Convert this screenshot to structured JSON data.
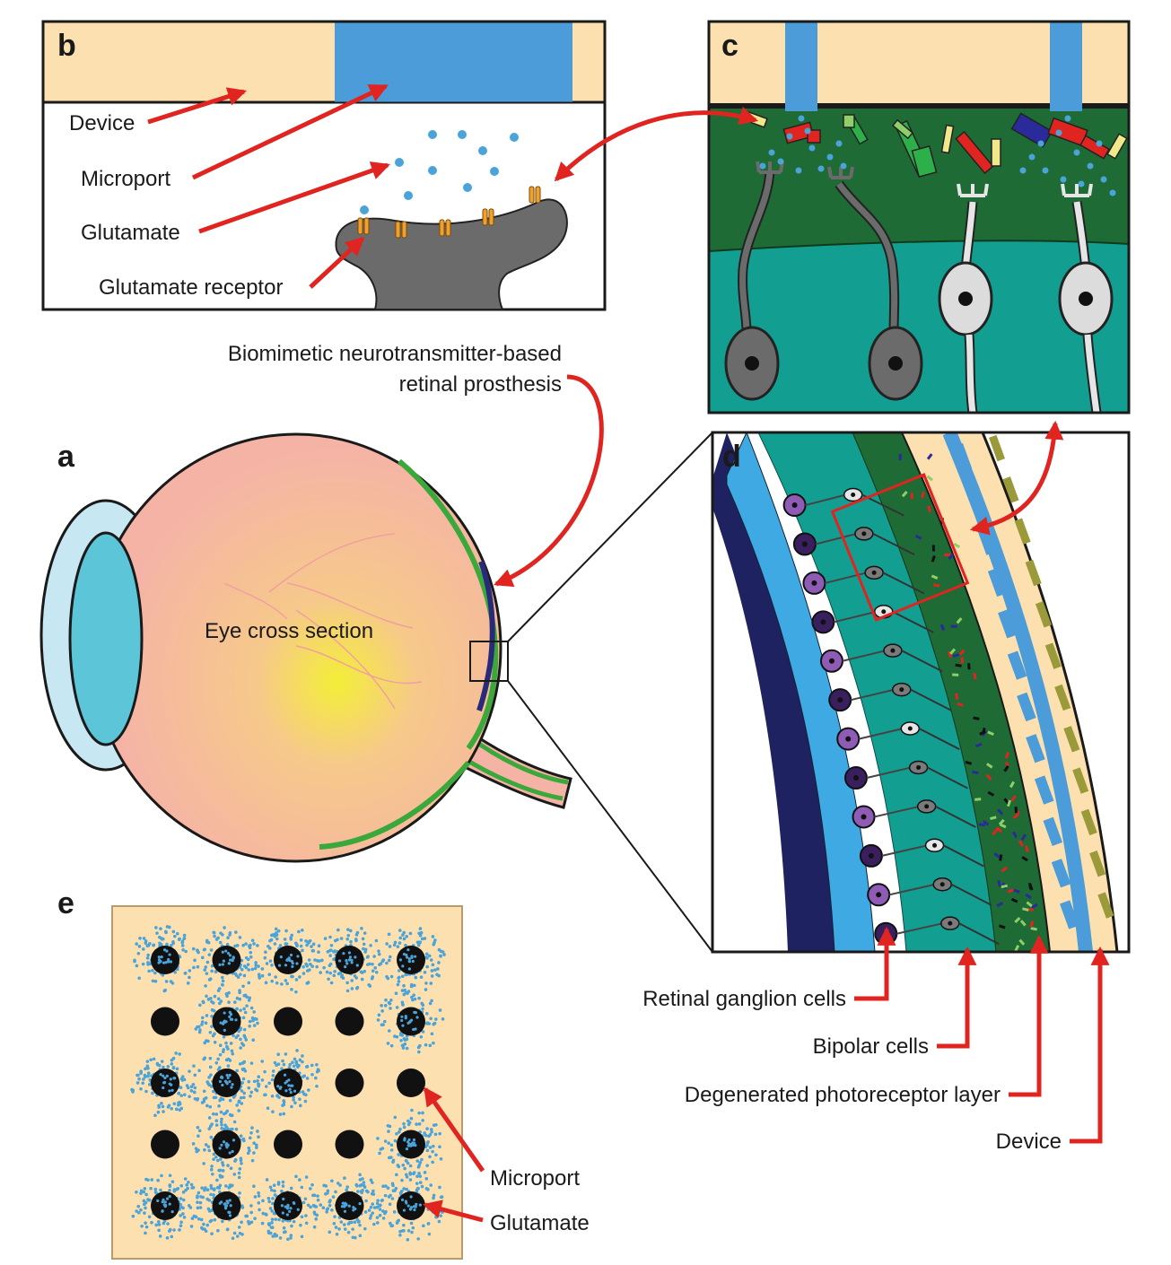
{
  "panels": {
    "a": "a",
    "b": "b",
    "c": "c",
    "d": "d",
    "e": "e"
  },
  "panel_b": {
    "device": "Device",
    "microport": "Microport",
    "glutamate": "Glutamate",
    "glutamate_receptor": "Glutamate receptor"
  },
  "prosthesis_caption": {
    "line1": "Biomimetic neurotransmitter-based",
    "line2": "retinal prosthesis"
  },
  "panel_a": {
    "eye_label": "Eye cross section"
  },
  "panel_d": {
    "retinal_ganglion": "Retinal ganglion cells",
    "bipolar": "Bipolar cells",
    "degenerated": "Degenerated photoreceptor layer",
    "device": "Device"
  },
  "panel_e": {
    "microport": "Microport",
    "glutamate": "Glutamate",
    "grid_pattern": [
      [
        1,
        1,
        1,
        1,
        1
      ],
      [
        0,
        1,
        0,
        0,
        1
      ],
      [
        1,
        1,
        1,
        0,
        0
      ],
      [
        0,
        1,
        0,
        0,
        1
      ],
      [
        1,
        1,
        1,
        1,
        1
      ]
    ]
  },
  "colors": {
    "device_substrate": "#fde0b0",
    "microport_blue": "#4b9cd8",
    "glutamate_dot": "#4aa3d9",
    "arrow_red": "#e02420",
    "neuron_gray": "#6b6b6b",
    "retina_dark_green": "#1e6b35",
    "retina_teal": "#139e92",
    "eye_pink": "#f5b3a6",
    "lens_cyan": "#5cc6d8",
    "ganglion_purple": "#8e5cb5",
    "ganglion_dark": "#3a1f5e"
  }
}
